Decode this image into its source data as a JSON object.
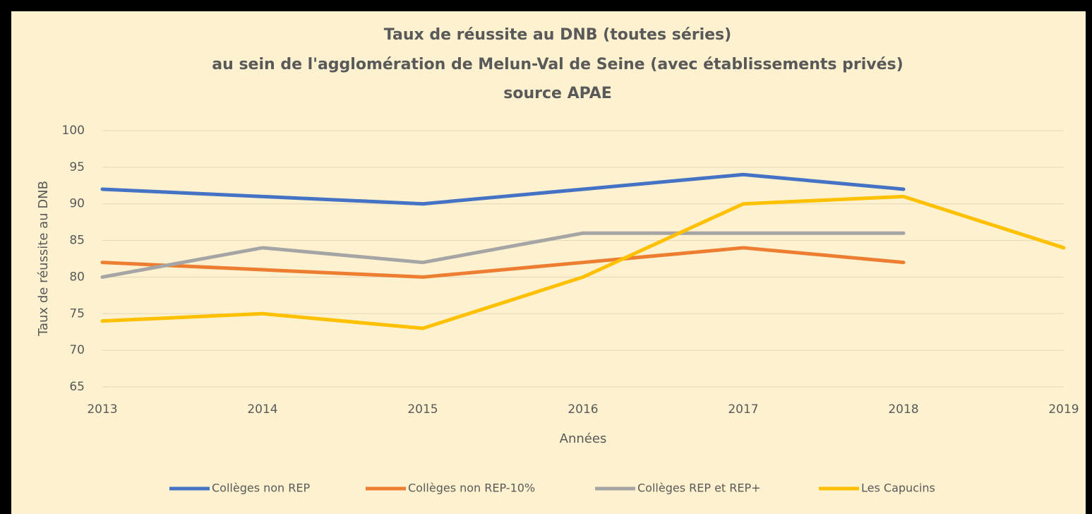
{
  "chart_data": {
    "type": "line",
    "title": [
      "Taux de réussite au DNB (toutes séries)",
      "au sein de l'agglomération de Melun-Val de Seine (avec établissements privés)",
      "source APAE"
    ],
    "x_label": "Années",
    "y_label": "Taux de réussite au DNB",
    "x": [
      2013,
      2014,
      2015,
      2016,
      2017,
      2018,
      2019
    ],
    "xlim": [
      2013,
      2019
    ],
    "xticks": [
      2013,
      2014,
      2015,
      2016,
      2017,
      2018,
      2019
    ],
    "ylim": [
      65,
      100
    ],
    "yticks": [
      65,
      70,
      75,
      80,
      85,
      90,
      95,
      100
    ],
    "grid": true,
    "legend": "bottom",
    "series": [
      {
        "name": "Collèges non REP",
        "color": "#4472c4",
        "values": [
          92,
          91,
          90,
          92,
          94,
          92,
          null
        ]
      },
      {
        "name": "Collèges non REP-10%",
        "color": "#ed7d31",
        "values": [
          82,
          81,
          80,
          82,
          84,
          82,
          null
        ]
      },
      {
        "name": "Collèges REP et REP+",
        "color": "#a5a5a5",
        "values": [
          80,
          84,
          82,
          86,
          86,
          86,
          null
        ]
      },
      {
        "name": "Les Capucins",
        "color": "#ffc000",
        "values": [
          74,
          75,
          73,
          80,
          90,
          91,
          84
        ]
      }
    ]
  }
}
